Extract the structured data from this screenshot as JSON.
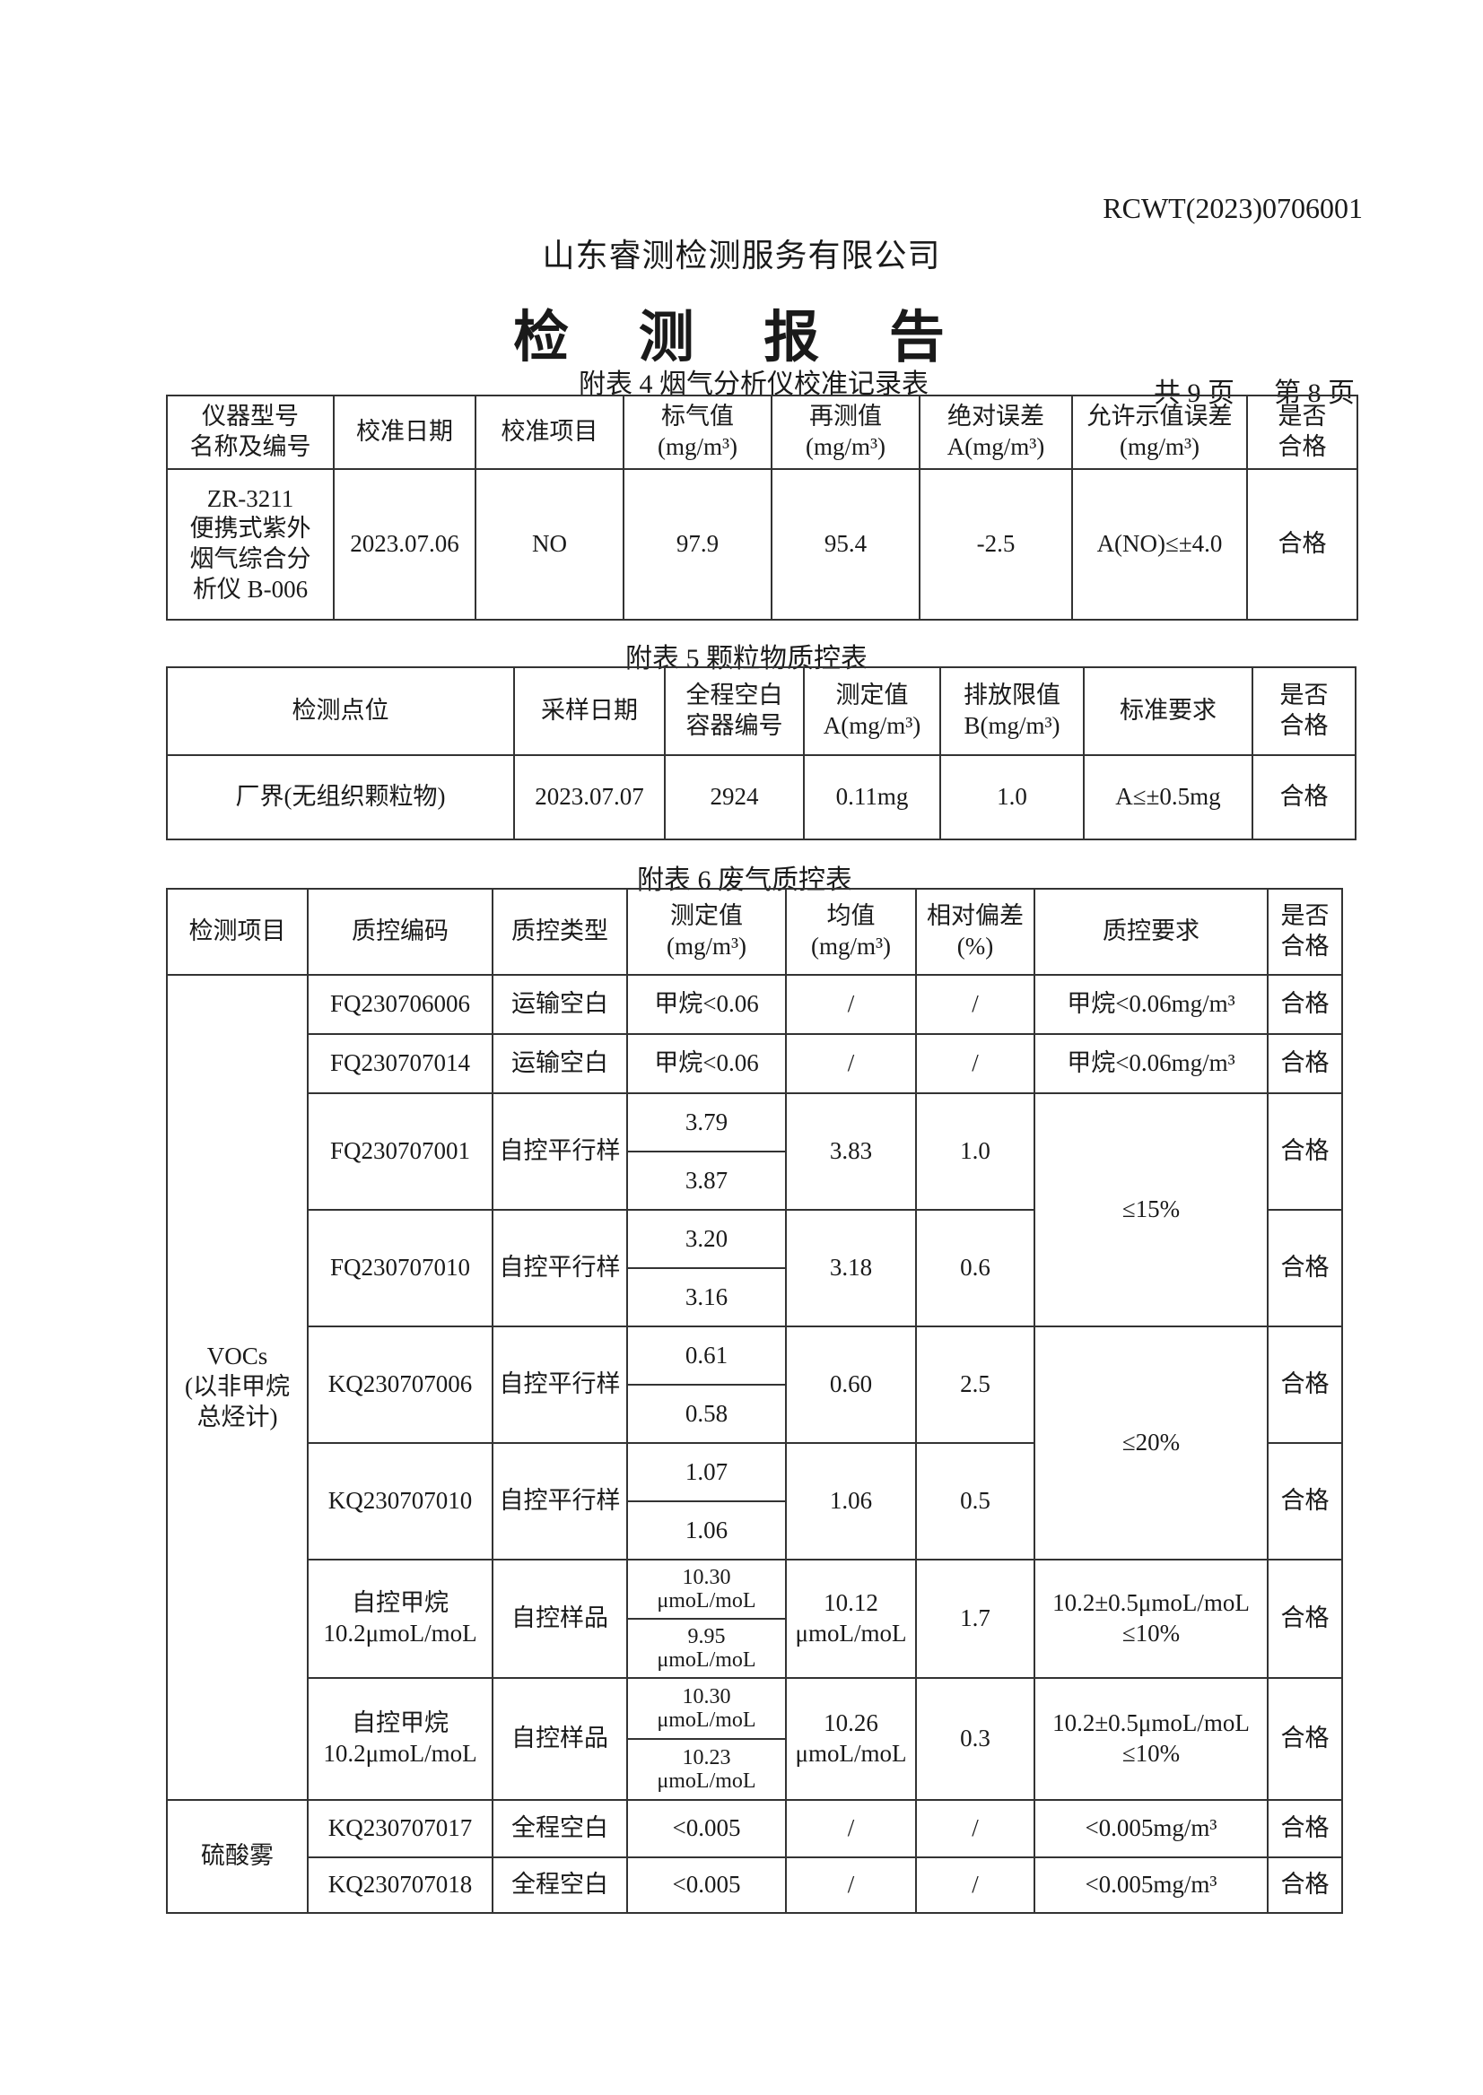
{
  "header": {
    "doc_number": "RCWT(2023)0706001",
    "company": "山东睿测检测服务有限公司",
    "title": "检 测 报 告"
  },
  "table4": {
    "caption": "附表 4  烟气分析仪校准记录表",
    "page_total": "共 9 页",
    "page_current": "第 8 页",
    "headers": [
      "仪器型号\n名称及编号",
      "校准日期",
      "校准项目",
      "标气值\n(mg/m³)",
      "再测值\n(mg/m³)",
      "绝对误差\nA(mg/m³)",
      "允许示值误差\n(mg/m³)",
      "是否\n合格"
    ],
    "row": [
      "ZR-3211\n便携式紫外\n烟气综合分\n析仪 B-006",
      "2023.07.06",
      "NO",
      "97.9",
      "95.4",
      "-2.5",
      "A(NO)≤±4.0",
      "合格"
    ]
  },
  "table5": {
    "caption": "附表 5  颗粒物质控表",
    "headers": [
      "检测点位",
      "采样日期",
      "全程空白\n容器编号",
      "测定值\nA(mg/m³)",
      "排放限值\nB(mg/m³)",
      "标准要求",
      "是否\n合格"
    ],
    "row": [
      "厂界(无组织颗粒物)",
      "2023.07.07",
      "2924",
      "0.11mg",
      "1.0",
      "A≤±0.5mg",
      "合格"
    ]
  },
  "table6": {
    "caption": "附表 6  废气质控表",
    "headers": [
      "检测项目",
      "质控编码",
      "质控类型",
      "测定值\n(mg/m³)",
      "均值\n(mg/m³)",
      "相对偏差\n(%)",
      "质控要求",
      "是否\n合格"
    ],
    "voc_label": "VOCs\n(以非甲烷\n总烃计)",
    "blanks": [
      {
        "code": "FQ230706006",
        "type": "运输空白",
        "value": "甲烷<0.06",
        "mean": "/",
        "rsd": "/",
        "req": "甲烷<0.06mg/m³",
        "result": "合格"
      },
      {
        "code": "FQ230707014",
        "type": "运输空白",
        "value": "甲烷<0.06",
        "mean": "/",
        "rsd": "/",
        "req": "甲烷<0.06mg/m³",
        "result": "合格"
      }
    ],
    "parallels": [
      {
        "code": "FQ230707001",
        "type": "自控平行样",
        "v1": "3.79",
        "v2": "3.87",
        "mean": "3.83",
        "rsd": "1.0",
        "result": "合格"
      },
      {
        "code": "FQ230707010",
        "type": "自控平行样",
        "v1": "3.20",
        "v2": "3.16",
        "mean": "3.18",
        "rsd": "0.6",
        "result": "合格"
      },
      {
        "code": "KQ230707006",
        "type": "自控平行样",
        "v1": "0.61",
        "v2": "0.58",
        "mean": "0.60",
        "rsd": "2.5",
        "result": "合格"
      },
      {
        "code": "KQ230707010",
        "type": "自控平行样",
        "v1": "1.07",
        "v2": "1.06",
        "mean": "1.06",
        "rsd": "0.5",
        "result": "合格"
      }
    ],
    "req_fq": "≤15%",
    "req_kq": "≤20%",
    "samples": [
      {
        "code": "自控甲烷\n10.2μmoL/moL",
        "type": "自控样品",
        "v1": "10.30\nμmoL/moL",
        "v2": "9.95\nμmoL/moL",
        "mean": "10.12\nμmoL/moL",
        "rsd": "1.7",
        "req": "10.2±0.5μmoL/moL\n≤10%",
        "result": "合格"
      },
      {
        "code": "自控甲烷\n10.2μmoL/moL",
        "type": "自控样品",
        "v1": "10.30\nμmoL/moL",
        "v2": "10.23\nμmoL/moL",
        "mean": "10.26\nμmoL/moL",
        "rsd": "0.3",
        "req": "10.2±0.5μmoL/moL\n≤10%",
        "result": "合格"
      }
    ],
    "acid_label": "硫酸雾",
    "acid": [
      {
        "code": "KQ230707017",
        "type": "全程空白",
        "value": "<0.005",
        "mean": "/",
        "rsd": "/",
        "req": "<0.005mg/m³",
        "result": "合格"
      },
      {
        "code": "KQ230707018",
        "type": "全程空白",
        "value": "<0.005",
        "mean": "/",
        "rsd": "/",
        "req": "<0.005mg/m³",
        "result": "合格"
      }
    ]
  }
}
